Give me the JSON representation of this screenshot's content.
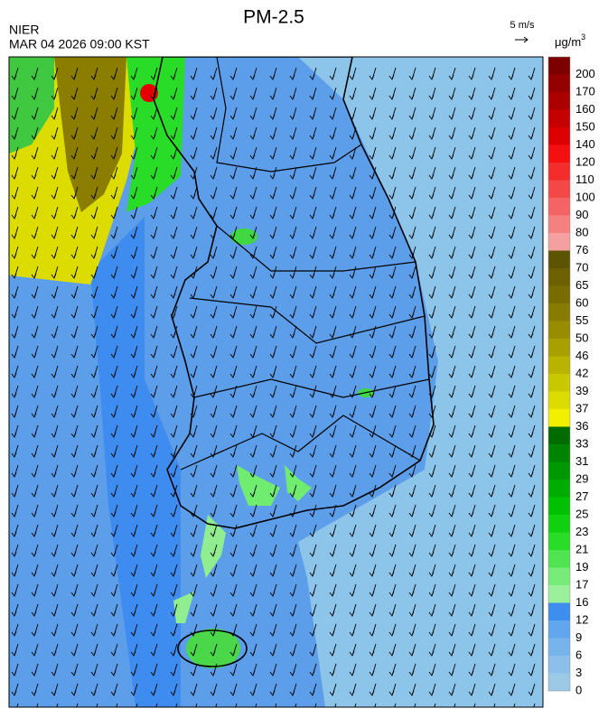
{
  "header": {
    "title": "PM-2.5",
    "agency": "NIER",
    "datetime": "MAR 04 2026 09:00 KST",
    "wind_scale": "5 m/s"
  },
  "legend": {
    "unit": "μg/m",
    "unit_power": "3",
    "ticks": [
      0,
      3,
      6,
      9,
      12,
      16,
      17,
      19,
      21,
      23,
      25,
      27,
      29,
      31,
      33,
      36,
      37,
      39,
      42,
      46,
      50,
      55,
      60,
      65,
      70,
      76,
      80,
      90,
      100,
      110,
      120,
      140,
      150,
      160,
      170,
      200
    ],
    "colors": [
      "#9cc9e6",
      "#8cc0ea",
      "#78b4ec",
      "#62a6ee",
      "#3e8ef0",
      "#9cf09c",
      "#78ec78",
      "#50e450",
      "#28dc28",
      "#10d010",
      "#00c000",
      "#00ac00",
      "#009800",
      "#008400",
      "#006c00",
      "#f0f000",
      "#dcdc00",
      "#c8c800",
      "#b8b400",
      "#a8a000",
      "#988c00",
      "#887c00",
      "#786c00",
      "#6c6000",
      "#5c5400",
      "#f4a0a0",
      "#f48080",
      "#f46464",
      "#f44848",
      "#f42c2c",
      "#f41010",
      "#dc0000",
      "#c40000",
      "#ac0000",
      "#940000",
      "#7c0000"
    ]
  }
}
